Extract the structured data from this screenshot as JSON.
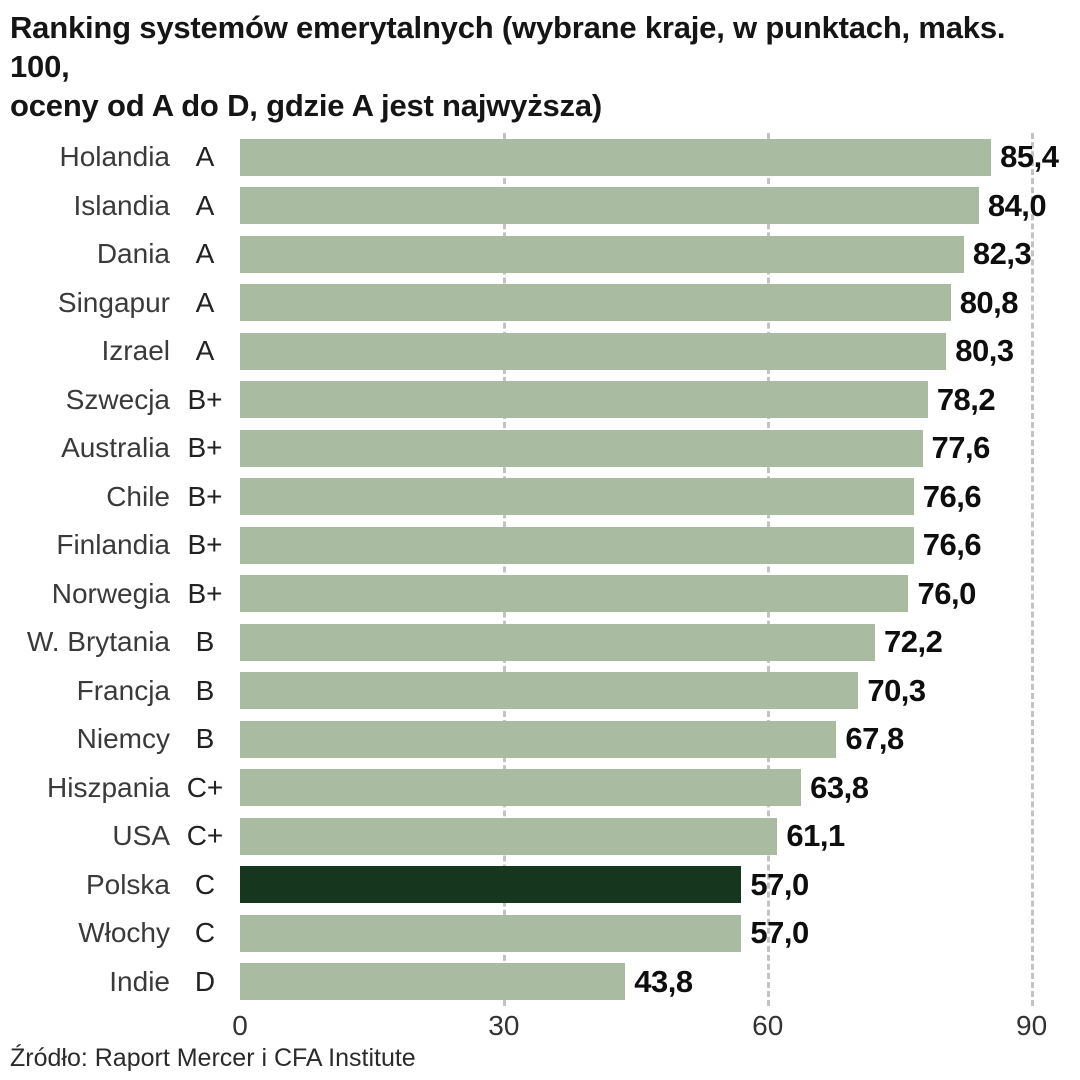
{
  "header": {
    "title_line1": "Ranking systemów emerytalnych (wybrane kraje, w punktach, maks. 100,",
    "title_line2": "oceny od A do D, gdzie A jest najwyższa)"
  },
  "source_note": "Źródło: Raport Mercer i CFA Institute",
  "colors": {
    "bar": "#a9bca1",
    "highlight_bar": "#17361e",
    "gridline": "#c3c3c3",
    "value_text": "#0e0e0e"
  },
  "chart_data": {
    "type": "bar",
    "orientation": "horizontal",
    "title": "Ranking systemów emerytalnych (wybrane kraje, w punktach, maks. 100, oceny od A do D, gdzie A jest najwyższa)",
    "categories": [
      "Holandia",
      "Islandia",
      "Dania",
      "Singapur",
      "Izrael",
      "Szwecja",
      "Australia",
      "Chile",
      "Finlandia",
      "Norwegia",
      "W. Brytania",
      "Francja",
      "Niemcy",
      "Hiszpania",
      "USA",
      "Polska",
      "Włochy",
      "Indie"
    ],
    "grades": [
      "A",
      "A",
      "A",
      "A",
      "A",
      "B+",
      "B+",
      "B+",
      "B+",
      "B+",
      "B",
      "B",
      "B",
      "C+",
      "C+",
      "C",
      "C",
      "D"
    ],
    "values": [
      85.4,
      84.0,
      82.3,
      80.8,
      80.3,
      78.2,
      77.6,
      76.6,
      76.6,
      76.0,
      72.2,
      70.3,
      67.8,
      63.8,
      61.1,
      57.0,
      57.0,
      43.8
    ],
    "highlight_index": 15,
    "highlight_category": "Polska",
    "xlabel": "",
    "ylabel": "",
    "xlim": [
      0,
      93
    ],
    "xticks": [
      0,
      30,
      60,
      90
    ],
    "grid": "dashed-vertical",
    "legend": "none",
    "decimal_separator": ",",
    "source": "Źródło: Raport Mercer i CFA Institute"
  }
}
